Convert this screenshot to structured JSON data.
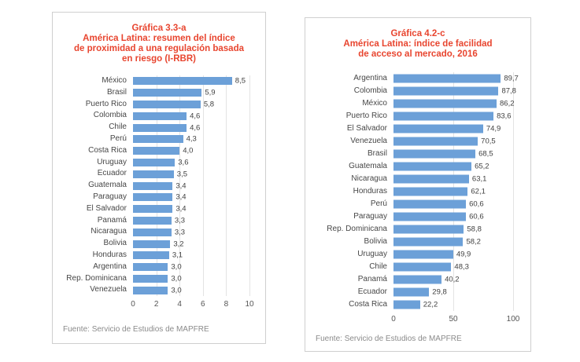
{
  "colors": {
    "bar": "#6CA0D8",
    "title_red": "#E8452F",
    "label_text": "#474747",
    "value_text": "#3F3F3F",
    "axis_text": "#555555",
    "source_text": "#8B8B8B",
    "panel_border": "#CFCFCF",
    "gridline": "#E3E3E3"
  },
  "chart_data": [
    {
      "type": "bar",
      "orientation": "horizontal",
      "title": "Gráfica 3.3-a América Latina: resumen del índice de proximidad a una regulación basada en riesgo (I-RBR)",
      "title_lines": [
        "Gráfica 3.3-a",
        "América Latina: resumen del índice",
        "de proximidad a una regulación basada",
        "en riesgo (I-RBR)"
      ],
      "categories": [
        "México",
        "Brasil",
        "Puerto Rico",
        "Colombia",
        "Chile",
        "Perú",
        "Costa Rica",
        "Uruguay",
        "Ecuador",
        "Guatemala",
        "Paraguay",
        "El Salvador",
        "Panamá",
        "Nicaragua",
        "Bolivia",
        "Honduras",
        "Argentina",
        "Rep. Dominicana",
        "Venezuela"
      ],
      "values": [
        8.5,
        5.9,
        5.8,
        4.6,
        4.6,
        4.3,
        4.0,
        3.6,
        3.5,
        3.4,
        3.4,
        3.4,
        3.3,
        3.3,
        3.2,
        3.1,
        3.0,
        3.0,
        3.0
      ],
      "value_labels": [
        "8,5",
        "5,9",
        "5,8",
        "4,6",
        "4,6",
        "4,3",
        "4,0",
        "3,6",
        "3,5",
        "3,4",
        "3,4",
        "3,4",
        "3,3",
        "3,3",
        "3,2",
        "3,1",
        "3,0",
        "3,0",
        "3,0"
      ],
      "xlim": [
        0,
        10
      ],
      "xticks": [
        0,
        2,
        4,
        6,
        8,
        10
      ],
      "grid": true,
      "legend": false,
      "source": "Fuente: Servicio de Estudios de MAPFRE"
    },
    {
      "type": "bar",
      "orientation": "horizontal",
      "title": "Gráfica 4.2-c América Latina: índice de facilidad de acceso al mercado, 2016",
      "title_lines": [
        "Gráfica 4.2-c",
        "América Latina: índice de facilidad",
        "de acceso al mercado, 2016"
      ],
      "categories": [
        "Argentina",
        "Colombia",
        "México",
        "Puerto Rico",
        "El Salvador",
        "Venezuela",
        "Brasil",
        "Guatemala",
        "Nicaragua",
        "Honduras",
        "Perú",
        "Paraguay",
        "Rep. Dominicana",
        "Bolivia",
        "Uruguay",
        "Chile",
        "Panamá",
        "Ecuador",
        "Costa Rica"
      ],
      "values": [
        89.7,
        87.8,
        86.2,
        83.6,
        74.9,
        70.5,
        68.5,
        65.2,
        63.1,
        62.1,
        60.6,
        60.6,
        58.8,
        58.2,
        49.9,
        48.3,
        40.2,
        29.8,
        22.2
      ],
      "value_labels": [
        "89,7",
        "87,8",
        "86,2",
        "83,6",
        "74,9",
        "70,5",
        "68,5",
        "65,2",
        "63,1",
        "62,1",
        "60,6",
        "60,6",
        "58,8",
        "58,2",
        "49,9",
        "48,3",
        "40,2",
        "29,8",
        "22,2"
      ],
      "xlim": [
        0,
        100
      ],
      "xticks": [
        0,
        50,
        100
      ],
      "grid": true,
      "legend": false,
      "source": "Fuente: Servicio de Estudios de MAPFRE"
    }
  ]
}
